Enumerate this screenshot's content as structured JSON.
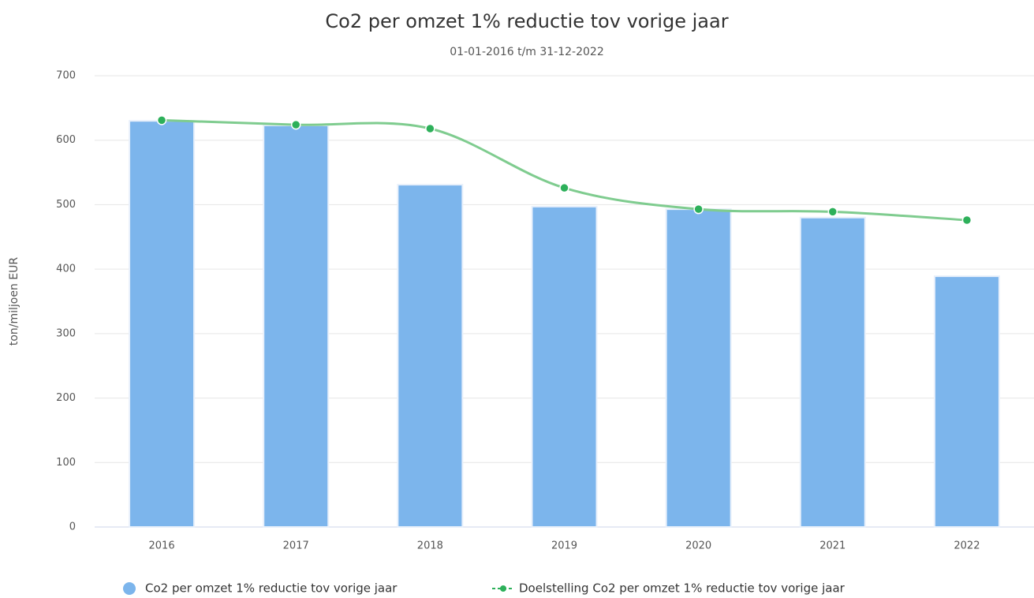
{
  "chart_data": {
    "type": "bar",
    "title": "Co2 per omzet 1% reductie tov vorige jaar",
    "subtitle": "01-01-2016 t/m 31-12-2022",
    "y_label": "ton/miljoen EUR",
    "categories": [
      "2016",
      "2017",
      "2018",
      "2019",
      "2020",
      "2021",
      "2022"
    ],
    "series": [
      {
        "name": "Co2 per omzet 1% reductie tov vorige jaar",
        "type": "bar",
        "color": "#7cb5ec",
        "values": [
          630,
          623,
          531,
          497,
          493,
          480,
          389
        ]
      },
      {
        "name": "Doelstelling Co2 per omzet 1% reductie tov vorige jaar",
        "type": "line",
        "color": "#2db05a",
        "values": [
          631,
          624,
          618,
          526,
          493,
          489,
          476
        ]
      }
    ],
    "ylim": [
      0,
      700
    ],
    "yticks": [
      0,
      100,
      200,
      300,
      400,
      500,
      600,
      700
    ],
    "grid": true,
    "legend": "bottom"
  }
}
